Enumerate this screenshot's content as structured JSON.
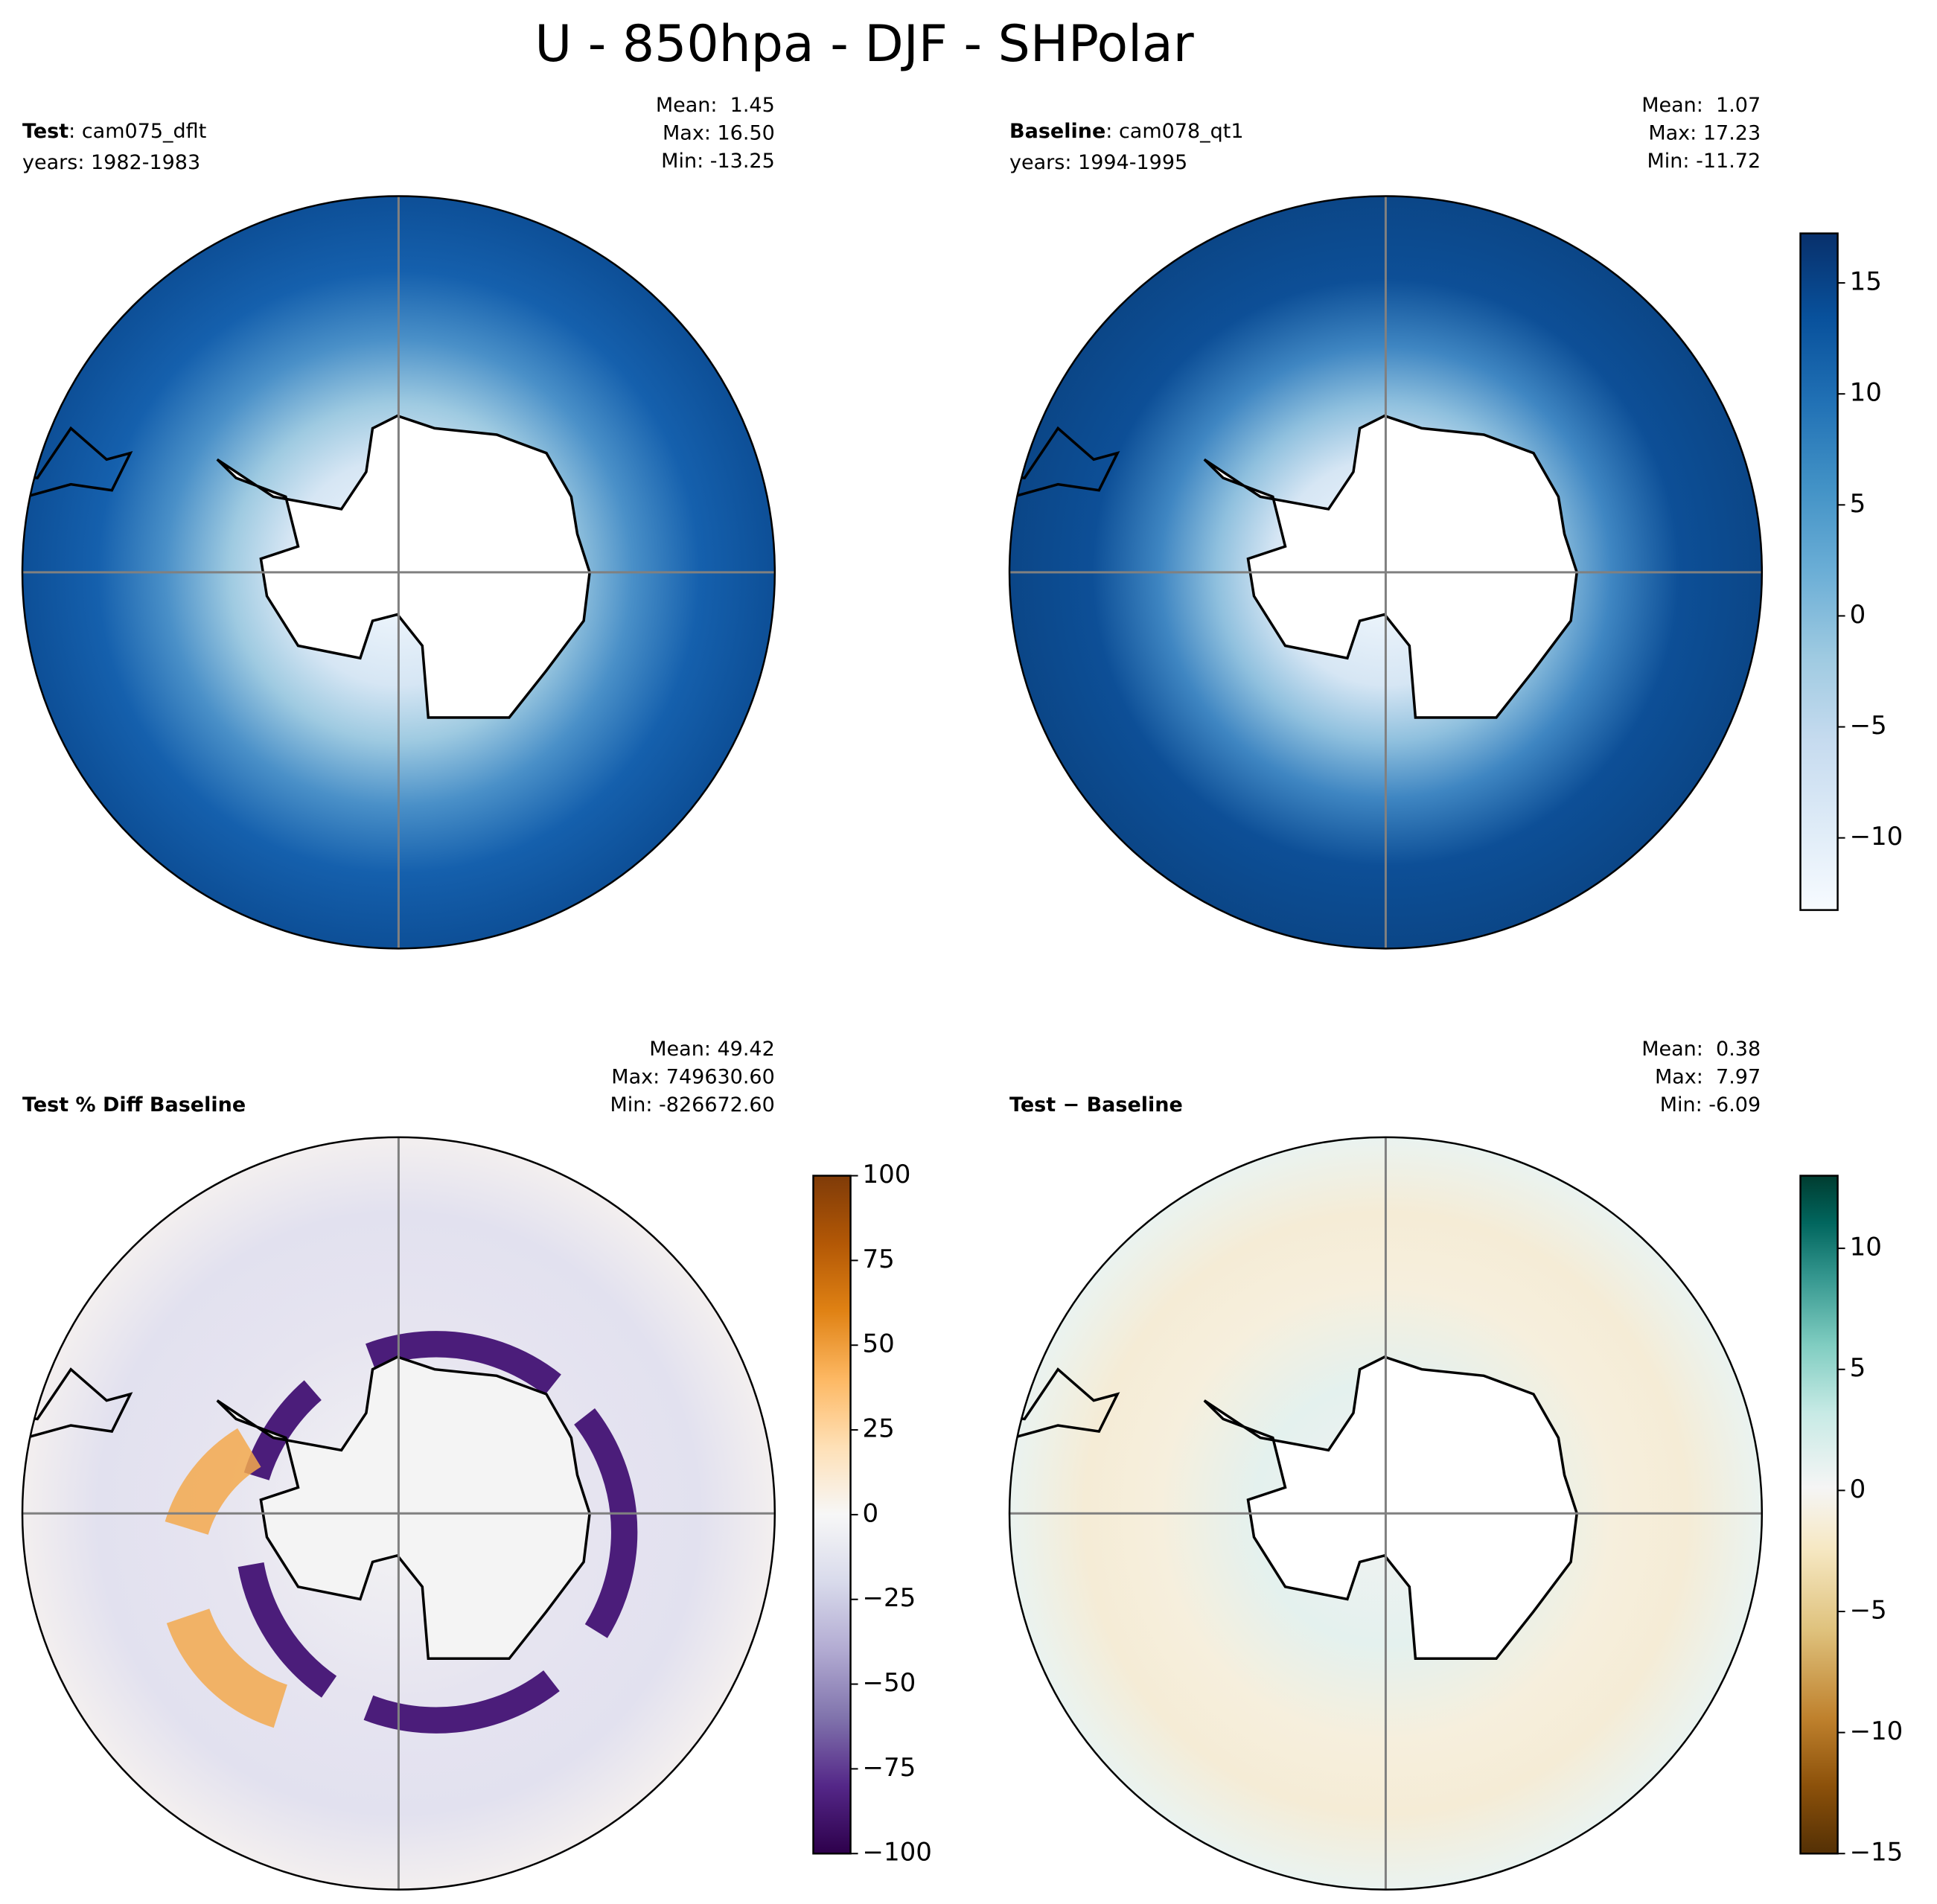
{
  "title": "U - 850hpa - DJF - SHPolar",
  "panels": [
    {
      "label_bold": "Test",
      "label_rest": ": cam075_dflt",
      "years": "years: 1982-1983",
      "stats": [
        "Mean:  1.45",
        "Max: 16.50",
        "Min: -13.25"
      ]
    },
    {
      "label_bold": "Baseline",
      "label_rest": ": cam078_qt1",
      "years": "years: 1994-1995",
      "stats": [
        "Mean:  1.07",
        "Max: 17.23",
        "Min: -11.72"
      ]
    },
    {
      "label_bold": "Test % Diff Baseline",
      "stats": [
        "Mean: 49.42",
        "Max: 749630.60",
        "Min: -826672.60"
      ]
    },
    {
      "label_bold": "Test − Baseline",
      "stats": [
        "Mean:  0.38",
        "Max:  7.97",
        "Min: -6.09"
      ]
    }
  ],
  "colorbars": [
    {
      "ylim": [
        -13.25,
        17.23
      ],
      "yticks": [
        {
          "value": -10,
          "label": "−10"
        },
        {
          "value": -5,
          "label": "−5"
        },
        0,
        5,
        10,
        15
      ]
    },
    {
      "ylim": [
        -100,
        100
      ],
      "yticks": [
        {
          "value": -100,
          "label": "−100"
        },
        {
          "value": -75,
          "label": "−75"
        },
        {
          "value": -50,
          "label": "−50"
        },
        {
          "value": -25,
          "label": "−25"
        },
        0,
        25,
        50,
        75,
        100
      ]
    },
    {
      "ylim": [
        -15,
        13
      ],
      "yticks": [
        {
          "value": -15,
          "label": "−15"
        },
        {
          "value": -10,
          "label": "−10"
        },
        {
          "value": -5,
          "label": "−5"
        },
        0,
        5,
        10
      ]
    }
  ]
}
